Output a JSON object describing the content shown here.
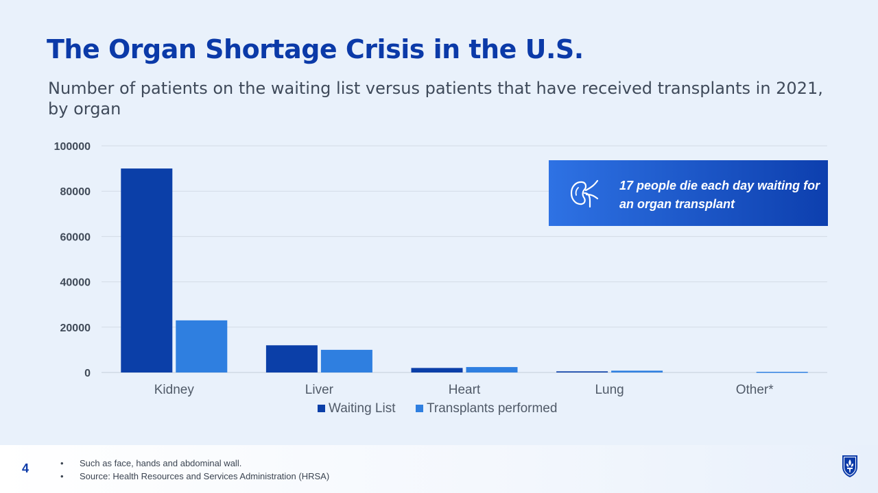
{
  "slide": {
    "title": "The Organ Shortage Crisis in the U.S.",
    "subtitle": "Number of patients on the waiting list versus patients that have received transplants in 2021, by organ",
    "page_number": "4"
  },
  "callout": {
    "text": "17 people die each day waiting for an organ transplant",
    "icon": "kidney-icon"
  },
  "footer": {
    "notes": [
      "Such as face, hands and abdominal wall.",
      "Source: Health Resources and Services Administration (HRSA)"
    ],
    "logo_icon": "shield-crest-icon"
  },
  "colors": {
    "title": "#0b3aa8",
    "waiting_list": "#0b3fa8",
    "transplants": "#2f7fe0",
    "grid": "#d3dbe6",
    "axis": "#c4cdd9"
  },
  "chart_data": {
    "type": "bar",
    "title": "",
    "xlabel": "",
    "ylabel": "",
    "categories": [
      "Kidney",
      "Liver",
      "Heart",
      "Lung",
      "Other*"
    ],
    "series": [
      {
        "name": "Waiting List",
        "values": [
          90000,
          12000,
          2000,
          500,
          0
        ]
      },
      {
        "name": "Transplants performed",
        "values": [
          23000,
          10000,
          2400,
          800,
          300
        ]
      }
    ],
    "ylim": [
      0,
      100000
    ],
    "yticks": [
      "100000",
      "80000",
      "60000",
      "40000",
      "20000",
      "0"
    ],
    "grid": true,
    "legend": "bottom"
  }
}
